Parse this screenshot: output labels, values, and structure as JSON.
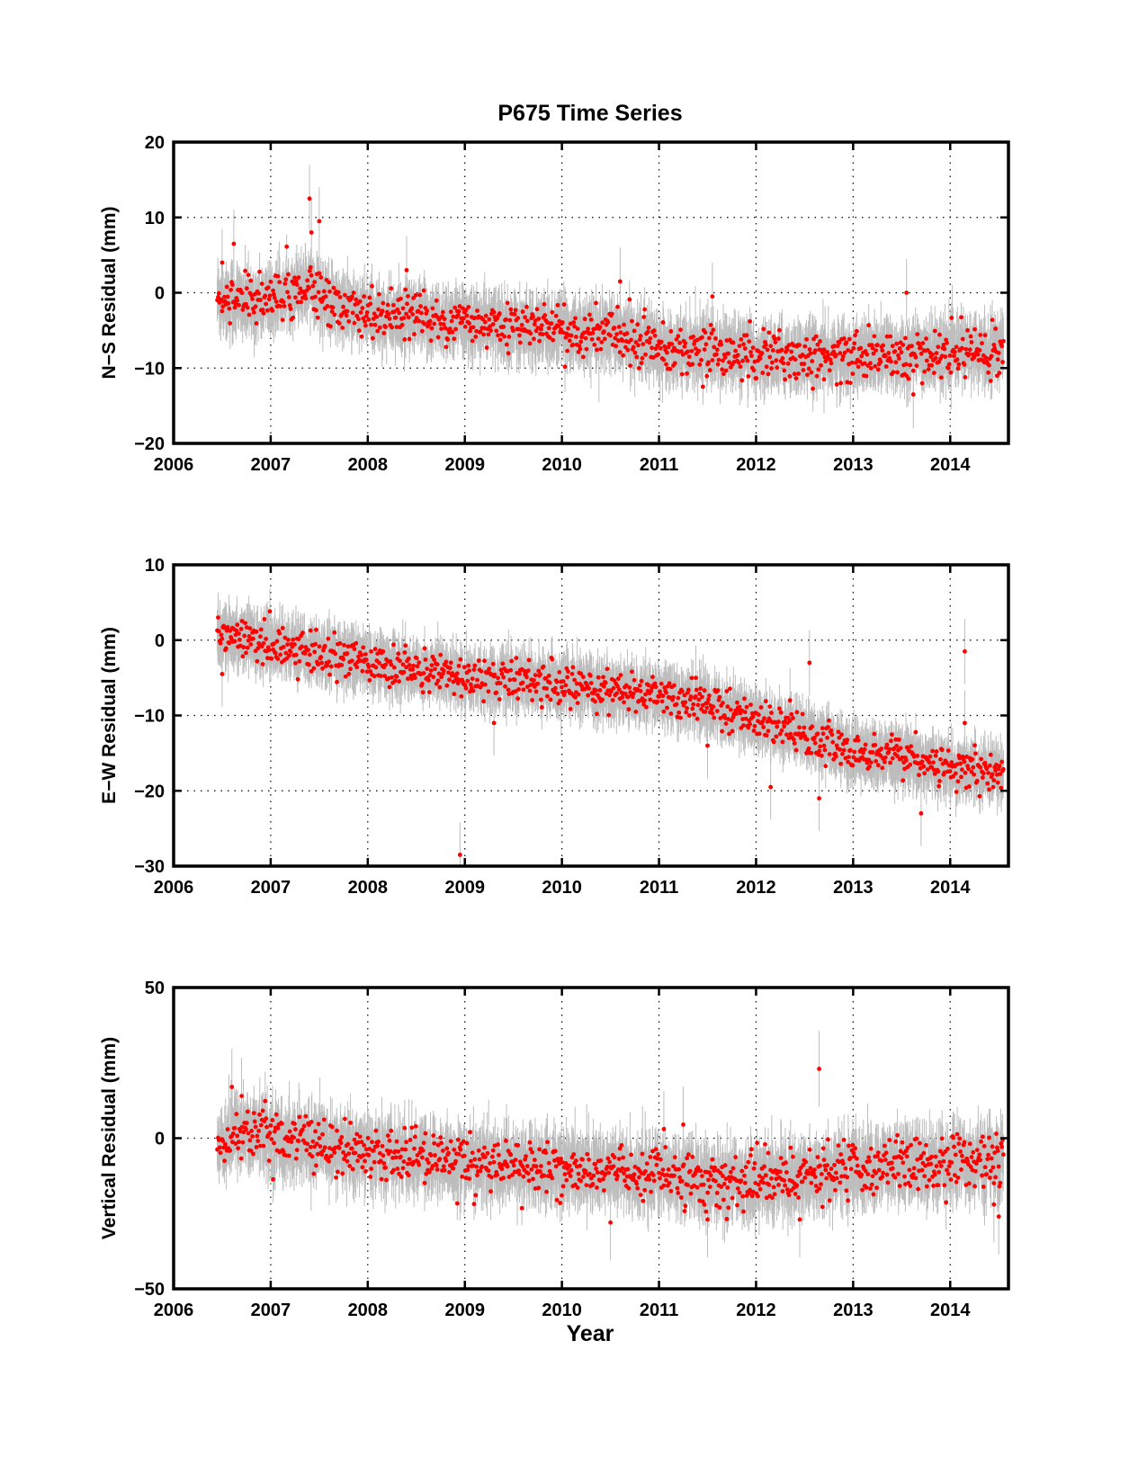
{
  "figure": {
    "title": "P675 Time Series",
    "xlabel": "Year"
  },
  "colors": {
    "points": "#ff0000",
    "error_bars": "#bdbdbd",
    "axes": "#000000",
    "grid": "#000000"
  },
  "chart_data": [
    {
      "type": "scatter",
      "ylabel": "N−S Residual (mm)",
      "xlim": [
        2006,
        2014.6
      ],
      "ylim": [
        -20,
        20
      ],
      "xticks": [
        2006,
        2007,
        2008,
        2009,
        2010,
        2011,
        2012,
        2013,
        2014
      ],
      "yticks": [
        -20,
        -10,
        0,
        10,
        20
      ],
      "grid": "dotted",
      "error_bars": true,
      "trend": [
        [
          2006.45,
          -0.5
        ],
        [
          2006.8,
          -1.5
        ],
        [
          2007.0,
          -1.0
        ],
        [
          2007.4,
          1.5
        ],
        [
          2007.6,
          -1.5
        ],
        [
          2008.0,
          -3.0
        ],
        [
          2009.0,
          -4.0
        ],
        [
          2010.0,
          -5.0
        ],
        [
          2010.5,
          -5.5
        ],
        [
          2011.0,
          -7.0
        ],
        [
          2011.5,
          -7.5
        ],
        [
          2012.0,
          -8.5
        ],
        [
          2013.0,
          -8.5
        ],
        [
          2014.0,
          -8.0
        ],
        [
          2014.55,
          -7.5
        ]
      ],
      "noise": 1.6,
      "err_halfwidth": 2.5,
      "outliers": [
        [
          2007.4,
          12.5
        ],
        [
          2007.42,
          8.0
        ],
        [
          2007.5,
          9.5
        ],
        [
          2006.62,
          6.5
        ],
        [
          2006.5,
          4.0
        ],
        [
          2008.4,
          3.0
        ],
        [
          2010.6,
          1.5
        ],
        [
          2011.55,
          -0.5
        ],
        [
          2013.55,
          0.0
        ],
        [
          2012.7,
          -11.5
        ],
        [
          2013.62,
          -13.5
        ]
      ]
    },
    {
      "type": "scatter",
      "ylabel": "E−W Residual (mm)",
      "xlim": [
        2006,
        2014.6
      ],
      "ylim": [
        -30,
        10
      ],
      "xticks": [
        2006,
        2007,
        2008,
        2009,
        2010,
        2011,
        2012,
        2013,
        2014
      ],
      "yticks": [
        -30,
        -20,
        -10,
        0,
        10
      ],
      "grid": "dotted",
      "error_bars": true,
      "trend": [
        [
          2006.45,
          1.0
        ],
        [
          2007.0,
          -0.5
        ],
        [
          2008.0,
          -3.0
        ],
        [
          2009.0,
          -4.8
        ],
        [
          2010.0,
          -6.0
        ],
        [
          2011.0,
          -7.5
        ],
        [
          2011.5,
          -8.5
        ],
        [
          2012.0,
          -10.5
        ],
        [
          2012.5,
          -12.5
        ],
        [
          2013.0,
          -15.0
        ],
        [
          2013.5,
          -16.0
        ],
        [
          2014.0,
          -17.0
        ],
        [
          2014.55,
          -17.5
        ]
      ],
      "noise": 1.3,
      "err_halfwidth": 2.4,
      "outliers": [
        [
          2008.95,
          -28.5
        ],
        [
          2009.3,
          -11.0
        ],
        [
          2012.15,
          -19.5
        ],
        [
          2012.65,
          -21.0
        ],
        [
          2012.55,
          -3.0
        ],
        [
          2012.35,
          -8.0
        ],
        [
          2014.15,
          -1.5
        ],
        [
          2014.15,
          -11.0
        ],
        [
          2011.5,
          -14.0
        ],
        [
          2011.38,
          -5.0
        ],
        [
          2013.7,
          -23.0
        ],
        [
          2006.5,
          -4.5
        ]
      ]
    },
    {
      "type": "scatter",
      "ylabel": "Vertical Residual (mm)",
      "xlim": [
        2006,
        2014.6
      ],
      "ylim": [
        -50,
        50
      ],
      "xticks": [
        2006,
        2007,
        2008,
        2009,
        2010,
        2011,
        2012,
        2013,
        2014
      ],
      "yticks": [
        -50,
        0,
        50
      ],
      "grid": "dotted",
      "error_bars": true,
      "trend": [
        [
          2006.45,
          -3.0
        ],
        [
          2006.65,
          3.0
        ],
        [
          2007.0,
          0.0
        ],
        [
          2008.0,
          -5.0
        ],
        [
          2009.0,
          -8.0
        ],
        [
          2010.0,
          -10.0
        ],
        [
          2011.0,
          -12.0
        ],
        [
          2011.5,
          -15.0
        ],
        [
          2012.0,
          -14.0
        ],
        [
          2012.5,
          -13.0
        ],
        [
          2013.0,
          -10.0
        ],
        [
          2014.0,
          -8.0
        ],
        [
          2014.55,
          -8.0
        ]
      ],
      "noise": 4.5,
      "err_halfwidth": 7.0,
      "outliers": [
        [
          2012.65,
          23.0
        ],
        [
          2011.05,
          3.0
        ],
        [
          2011.25,
          4.5
        ],
        [
          2006.6,
          17.0
        ],
        [
          2006.7,
          14.0
        ],
        [
          2014.5,
          -26.0
        ],
        [
          2014.45,
          -22.0
        ],
        [
          2010.5,
          -28.0
        ],
        [
          2011.5,
          -27.0
        ],
        [
          2012.45,
          -27.0
        ]
      ]
    }
  ]
}
